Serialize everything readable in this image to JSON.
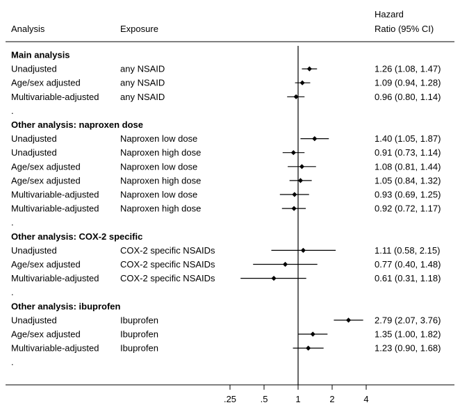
{
  "chart_data": {
    "type": "forest",
    "headers": {
      "analysis": "Analysis",
      "exposure": "Exposure",
      "hr_line1": "Hazard",
      "hr_line2": "Ratio (95% CI)"
    },
    "x_scale": "log",
    "reference_line": 1,
    "xlim": [
      0.2,
      5.8
    ],
    "x_ticks": [
      {
        "value": 0.25,
        "label": ".25"
      },
      {
        "value": 0.5,
        "label": ".5"
      },
      {
        "value": 1,
        "label": "1"
      },
      {
        "value": 2,
        "label": "2"
      },
      {
        "value": 4,
        "label": "4"
      }
    ],
    "rows": [
      {
        "kind": "heading",
        "text": "Main analysis"
      },
      {
        "kind": "data",
        "analysis": "Unadjusted",
        "exposure": "any NSAID",
        "hr": 1.26,
        "lo": 1.08,
        "hi": 1.47,
        "label": "1.26 (1.08, 1.47)"
      },
      {
        "kind": "data",
        "analysis": "Age/sex adjusted",
        "exposure": "any NSAID",
        "hr": 1.09,
        "lo": 0.94,
        "hi": 1.28,
        "label": "1.09 (0.94, 1.28)"
      },
      {
        "kind": "data",
        "analysis": "Multivariable-adjusted",
        "exposure": "any NSAID",
        "hr": 0.96,
        "lo": 0.8,
        "hi": 1.14,
        "label": "0.96 (0.80, 1.14)"
      },
      {
        "kind": "spacer",
        "text": "."
      },
      {
        "kind": "heading",
        "text": "Other analysis: naproxen dose"
      },
      {
        "kind": "data",
        "analysis": "Unadjusted",
        "exposure": "Naproxen low dose",
        "hr": 1.4,
        "lo": 1.05,
        "hi": 1.87,
        "label": "1.40 (1.05, 1.87)"
      },
      {
        "kind": "data",
        "analysis": "Unadjusted",
        "exposure": "Naproxen high dose",
        "hr": 0.91,
        "lo": 0.73,
        "hi": 1.14,
        "label": "0.91 (0.73, 1.14)"
      },
      {
        "kind": "data",
        "analysis": "Age/sex adjusted",
        "exposure": "Naproxen low dose",
        "hr": 1.08,
        "lo": 0.81,
        "hi": 1.44,
        "label": "1.08 (0.81, 1.44)"
      },
      {
        "kind": "data",
        "analysis": "Age/sex adjusted",
        "exposure": "Naproxen high dose",
        "hr": 1.05,
        "lo": 0.84,
        "hi": 1.32,
        "label": "1.05 (0.84, 1.32)"
      },
      {
        "kind": "data",
        "analysis": "Multivariable-adjusted",
        "exposure": "Naproxen low dose",
        "hr": 0.93,
        "lo": 0.69,
        "hi": 1.25,
        "label": "0.93 (0.69, 1.25)"
      },
      {
        "kind": "data",
        "analysis": "Multivariable-adjusted",
        "exposure": "Naproxen high dose",
        "hr": 0.92,
        "lo": 0.72,
        "hi": 1.17,
        "label": "0.92 (0.72, 1.17)"
      },
      {
        "kind": "spacer",
        "text": "."
      },
      {
        "kind": "heading",
        "text": "Other analysis: COX-2 specific"
      },
      {
        "kind": "data",
        "analysis": "Unadjusted",
        "exposure": "COX-2 specific NSAIDs",
        "hr": 1.11,
        "lo": 0.58,
        "hi": 2.15,
        "label": "1.11 (0.58, 2.15)"
      },
      {
        "kind": "data",
        "analysis": "Age/sex adjusted",
        "exposure": "COX-2 specific NSAIDs",
        "hr": 0.77,
        "lo": 0.4,
        "hi": 1.48,
        "label": "0.77 (0.40, 1.48)"
      },
      {
        "kind": "data",
        "analysis": "Multivariable-adjusted",
        "exposure": "COX-2 specific NSAIDs",
        "hr": 0.61,
        "lo": 0.31,
        "hi": 1.18,
        "label": "0.61 (0.31, 1.18)"
      },
      {
        "kind": "spacer",
        "text": "."
      },
      {
        "kind": "heading",
        "text": "Other analysis: ibuprofen"
      },
      {
        "kind": "data",
        "analysis": "Unadjusted",
        "exposure": "Ibuprofen",
        "hr": 2.79,
        "lo": 2.07,
        "hi": 3.76,
        "label": "2.79 (2.07, 3.76)"
      },
      {
        "kind": "data",
        "analysis": "Age/sex adjusted",
        "exposure": "Ibuprofen",
        "hr": 1.35,
        "lo": 1.0,
        "hi": 1.82,
        "label": "1.35 (1.00, 1.82)"
      },
      {
        "kind": "data",
        "analysis": "Multivariable-adjusted",
        "exposure": "Ibuprofen",
        "hr": 1.23,
        "lo": 0.9,
        "hi": 1.68,
        "label": "1.23 (0.90, 1.68)"
      },
      {
        "kind": "spacer",
        "text": "."
      }
    ]
  }
}
